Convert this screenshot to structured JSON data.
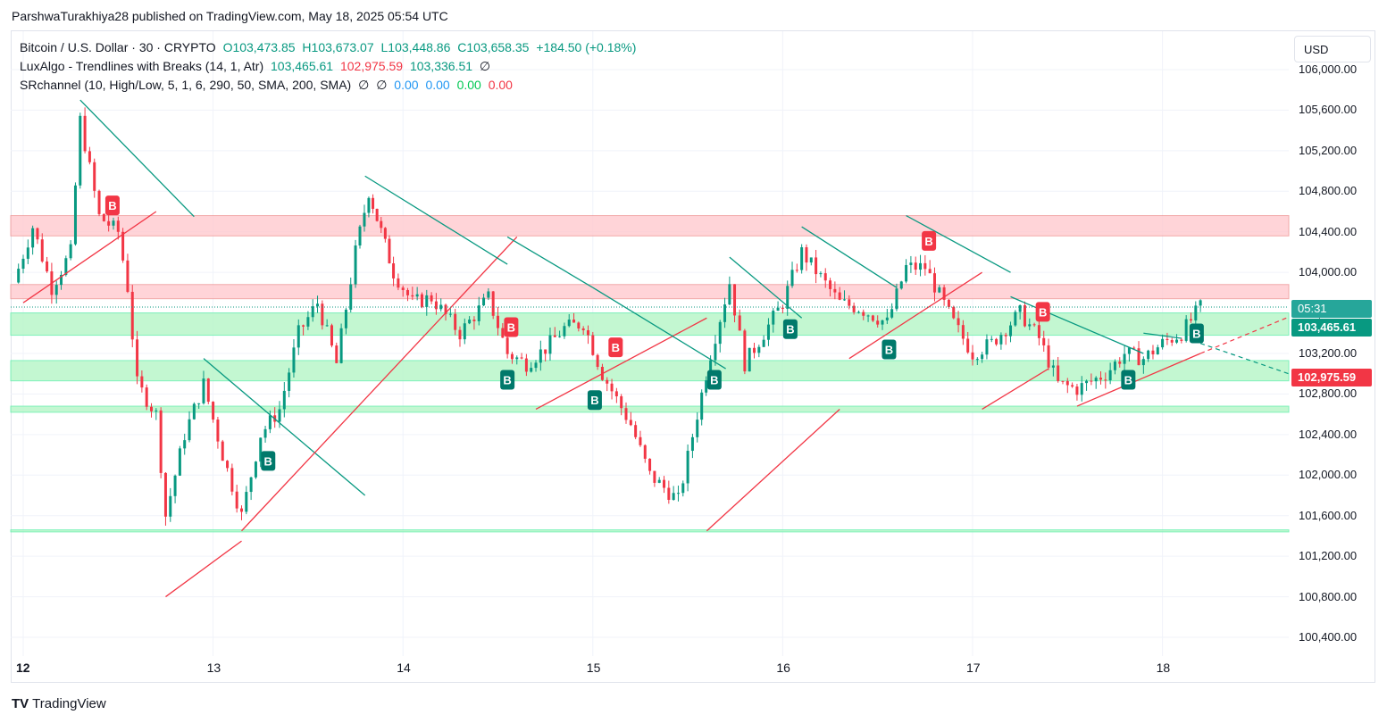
{
  "published_line": "ParshwaTurakhiya28 published on TradingView.com, May 18, 2025 05:54 UTC",
  "legend": {
    "symbol": "Bitcoin / U.S. Dollar · 30 · CRYPTO",
    "open": "O103,473.85",
    "high": "H103,673.07",
    "low": "L103,448.86",
    "close": "C103,658.35",
    "change": "+184.50 (+0.18%)",
    "lux_name": "LuxAlgo - Trendlines with Breaks (14, 1, Atr)",
    "lux_v1": "103,465.61",
    "lux_v2": "102,975.59",
    "lux_v3": "103,336.51",
    "lux_v4": "∅",
    "sr_name": "SRchannel (10, High/Low, 5, 1, 6, 290, 50, SMA, 200, SMA)",
    "sr_v1": "∅",
    "sr_v2": "∅",
    "sr_v3": "0.00",
    "sr_v4": "0.00",
    "sr_v5": "0.00",
    "sr_v6": "0.00"
  },
  "currency_button": "USD",
  "price_axis": [
    "106,000.00",
    "105,600.00",
    "105,200.00",
    "104,800.00",
    "104,400.00",
    "104,000.00",
    "103,600.00",
    "103,200.00",
    "102,800.00",
    "102,400.00",
    "102,000.00",
    "101,600.00",
    "101,200.00",
    "100,800.00",
    "100,400.00"
  ],
  "time_axis": [
    "12",
    "13",
    "14",
    "15",
    "16",
    "17",
    "18"
  ],
  "tags": {
    "countdown": "05:31",
    "lux_upper": "103,465.61",
    "lux_lower": "102,975.59"
  },
  "colors": {
    "up": "#089981",
    "down": "#f23645",
    "bull_zone": "#b9f6ca",
    "bear_zone": "#ffcdd2"
  },
  "brand": "TradingView",
  "chart_data": {
    "type": "candlestick",
    "symbol": "BTCUSD",
    "interval": "30",
    "x_ticks": [
      "12",
      "13",
      "14",
      "15",
      "16",
      "17",
      "18"
    ],
    "ylim": [
      100200,
      106200
    ],
    "close_points": [
      {
        "t": 11.95,
        "c": 103900
      },
      {
        "t": 12.05,
        "c": 104450
      },
      {
        "t": 12.15,
        "c": 103850
      },
      {
        "t": 12.25,
        "c": 104200
      },
      {
        "t": 12.3,
        "c": 105500
      },
      {
        "t": 12.4,
        "c": 104550
      },
      {
        "t": 12.5,
        "c": 104400
      },
      {
        "t": 12.55,
        "c": 103850
      },
      {
        "t": 12.6,
        "c": 102900
      },
      {
        "t": 12.7,
        "c": 102600
      },
      {
        "t": 12.75,
        "c": 101600
      },
      {
        "t": 12.85,
        "c": 102400
      },
      {
        "t": 12.95,
        "c": 102900
      },
      {
        "t": 13.05,
        "c": 102200
      },
      {
        "t": 13.15,
        "c": 101600
      },
      {
        "t": 13.25,
        "c": 102400
      },
      {
        "t": 13.35,
        "c": 102650
      },
      {
        "t": 13.45,
        "c": 103400
      },
      {
        "t": 13.55,
        "c": 103700
      },
      {
        "t": 13.65,
        "c": 103100
      },
      {
        "t": 13.75,
        "c": 104200
      },
      {
        "t": 13.82,
        "c": 104800
      },
      {
        "t": 13.95,
        "c": 104000
      },
      {
        "t": 14.05,
        "c": 103700
      },
      {
        "t": 14.15,
        "c": 103750
      },
      {
        "t": 14.3,
        "c": 103400
      },
      {
        "t": 14.45,
        "c": 103750
      },
      {
        "t": 14.55,
        "c": 103200
      },
      {
        "t": 14.65,
        "c": 103100
      },
      {
        "t": 14.75,
        "c": 103250
      },
      {
        "t": 14.85,
        "c": 103450
      },
      {
        "t": 14.95,
        "c": 103500
      },
      {
        "t": 15.05,
        "c": 103000
      },
      {
        "t": 15.2,
        "c": 102500
      },
      {
        "t": 15.3,
        "c": 102000
      },
      {
        "t": 15.45,
        "c": 101750
      },
      {
        "t": 15.55,
        "c": 102600
      },
      {
        "t": 15.62,
        "c": 103200
      },
      {
        "t": 15.72,
        "c": 103900
      },
      {
        "t": 15.8,
        "c": 103100
      },
      {
        "t": 15.9,
        "c": 103400
      },
      {
        "t": 16.0,
        "c": 103700
      },
      {
        "t": 16.1,
        "c": 104200
      },
      {
        "t": 16.2,
        "c": 103950
      },
      {
        "t": 16.3,
        "c": 103700
      },
      {
        "t": 16.4,
        "c": 103650
      },
      {
        "t": 16.55,
        "c": 103500
      },
      {
        "t": 16.65,
        "c": 104050
      },
      {
        "t": 16.75,
        "c": 104050
      },
      {
        "t": 16.9,
        "c": 103500
      },
      {
        "t": 17.0,
        "c": 103200
      },
      {
        "t": 17.1,
        "c": 103300
      },
      {
        "t": 17.25,
        "c": 103600
      },
      {
        "t": 17.35,
        "c": 103350
      },
      {
        "t": 17.45,
        "c": 102900
      },
      {
        "t": 17.55,
        "c": 102850
      },
      {
        "t": 17.7,
        "c": 103000
      },
      {
        "t": 17.8,
        "c": 103200
      },
      {
        "t": 17.9,
        "c": 103150
      },
      {
        "t": 18.0,
        "c": 103300
      },
      {
        "t": 18.1,
        "c": 103400
      },
      {
        "t": 18.2,
        "c": 103658.35
      }
    ],
    "current_price": 103658.35,
    "indicator_levels": {
      "lux_upper": 103465.61,
      "lux_lower": 102975.59
    },
    "support_resistance_zones": [
      {
        "type": "resistance",
        "from": 104360,
        "to": 104560
      },
      {
        "type": "resistance",
        "from": 103740,
        "to": 103880
      },
      {
        "type": "support",
        "from": 103380,
        "to": 103600
      },
      {
        "type": "support",
        "from": 102930,
        "to": 103130
      },
      {
        "type": "support",
        "from": 102620,
        "to": 102680
      },
      {
        "type": "support",
        "from": 101440,
        "to": 101460
      }
    ],
    "break_labels": [
      {
        "t": 12.47,
        "label": "B",
        "kind": "bearish"
      },
      {
        "t": 13.29,
        "label": "B",
        "kind": "bullish"
      },
      {
        "t": 14.55,
        "label": "B",
        "kind": "bullish"
      },
      {
        "t": 14.57,
        "label": "B",
        "kind": "bearish"
      },
      {
        "t": 15.01,
        "label": "B",
        "kind": "bullish"
      },
      {
        "t": 15.12,
        "label": "B",
        "kind": "bearish"
      },
      {
        "t": 15.64,
        "label": "B",
        "kind": "bullish"
      },
      {
        "t": 16.04,
        "label": "B",
        "kind": "bullish"
      },
      {
        "t": 16.56,
        "label": "B",
        "kind": "bullish"
      },
      {
        "t": 16.77,
        "label": "B",
        "kind": "bearish"
      },
      {
        "t": 17.37,
        "label": "B",
        "kind": "bearish"
      },
      {
        "t": 17.82,
        "label": "B",
        "kind": "bullish"
      },
      {
        "t": 18.18,
        "label": "B",
        "kind": "bullish"
      }
    ]
  }
}
